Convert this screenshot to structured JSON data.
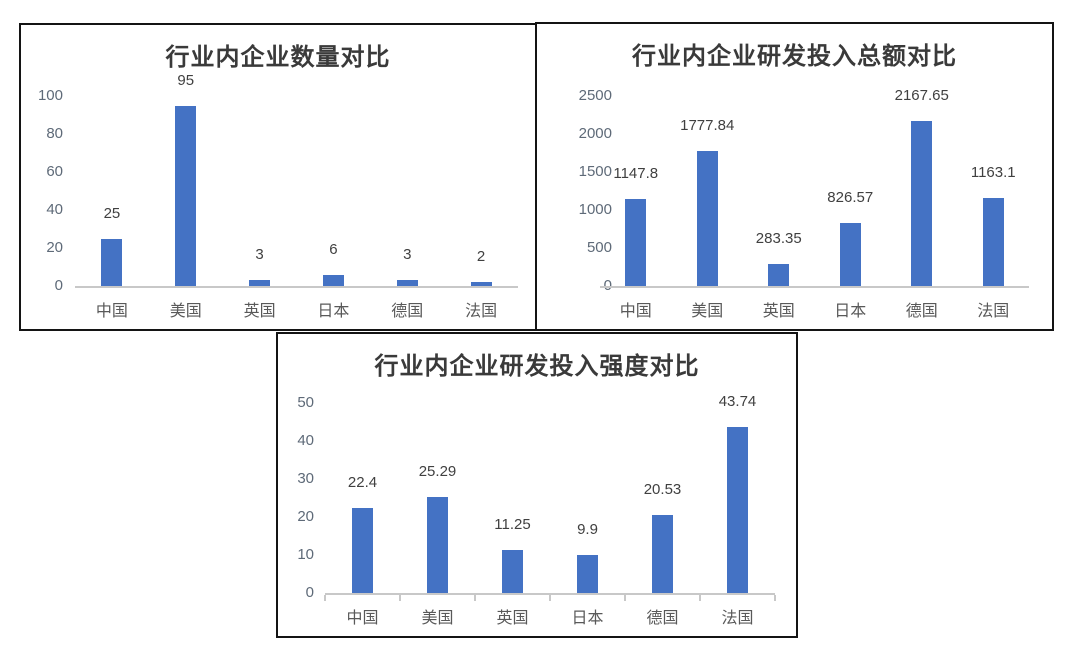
{
  "style": {
    "bar_color": "#4472C4",
    "axis_line_color": "#C8C8C8",
    "ytick_label_color": "#5E6A78",
    "category_label_color": "#595959",
    "data_label_color": "#404040",
    "title_color": "#3A3A3A",
    "frame_color": "#141414",
    "background": "#FFFFFF"
  },
  "chart_data": [
    {
      "type": "bar",
      "title": "行业内企业数量对比",
      "categories": [
        "中国",
        "美国",
        "英国",
        "日本",
        "德国",
        "法国"
      ],
      "values": [
        25,
        95,
        3,
        6,
        3,
        2
      ],
      "data_labels": [
        "25",
        "95",
        "3",
        "6",
        "3",
        "2"
      ],
      "ylim": [
        0,
        100
      ],
      "yticks": [
        0,
        20,
        40,
        60,
        80,
        100
      ],
      "xlabel": "",
      "ylabel": "",
      "legend": "none",
      "grid": false,
      "x_axis_tick_marks": false
    },
    {
      "type": "bar",
      "title": "行业内企业研发投入总额对比",
      "categories": [
        "中国",
        "美国",
        "英国",
        "日本",
        "德国",
        "法国"
      ],
      "values": [
        1147.8,
        1777.84,
        283.35,
        826.57,
        2167.65,
        1163.1
      ],
      "data_labels": [
        "1147.8",
        "1777.84",
        "283.35",
        "826.57",
        "2167.65",
        "1163.1"
      ],
      "ylim": [
        0,
        2500
      ],
      "yticks": [
        0,
        500,
        1000,
        1500,
        2000,
        2500
      ],
      "xlabel": "",
      "ylabel": "",
      "legend": "none",
      "grid": false,
      "x_axis_tick_marks": false
    },
    {
      "type": "bar",
      "title": "行业内企业研发投入强度对比",
      "categories": [
        "中国",
        "美国",
        "英国",
        "日本",
        "德国",
        "法国"
      ],
      "values": [
        22.4,
        25.29,
        11.25,
        9.9,
        20.53,
        43.74
      ],
      "data_labels": [
        "22.4",
        "25.29",
        "11.25",
        "9.9",
        "20.53",
        "43.74"
      ],
      "ylim": [
        0,
        50
      ],
      "yticks": [
        0,
        10,
        20,
        30,
        40,
        50
      ],
      "xlabel": "",
      "ylabel": "",
      "legend": "none",
      "grid": false,
      "x_axis_tick_marks": true
    }
  ]
}
